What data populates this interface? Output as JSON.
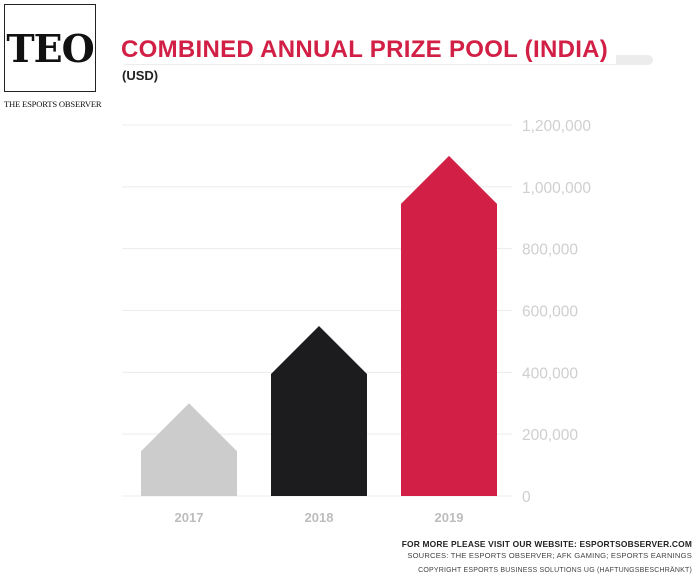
{
  "logo": {
    "mark": "TEO",
    "subtitle": "THE ESPORTS OBSERVER"
  },
  "header": {
    "title": "COMBINED ANNUAL PRIZE POOL (INDIA)",
    "subtitle": "(USD)"
  },
  "chart_data": {
    "type": "bar",
    "title": "COMBINED ANNUAL PRIZE POOL (INDIA)",
    "subtitle": "(USD)",
    "categories": [
      "2017",
      "2018",
      "2019"
    ],
    "values": [
      300000,
      550000,
      1100000
    ],
    "colors": [
      "#cccccc",
      "#1c1c1e",
      "#d21f45"
    ],
    "ylim": [
      0,
      1200000
    ],
    "yticks": [
      0,
      200000,
      400000,
      600000,
      800000,
      1000000,
      1200000
    ],
    "ytick_labels": [
      "0",
      "200,000",
      "400,000",
      "600,000",
      "800,000",
      "1,000,000",
      "1,200,000"
    ],
    "grid": true,
    "axis_position": "right",
    "bar_shape": "house"
  },
  "footer": {
    "website": "FOR MORE PLEASE VISIT OUR WEBSITE: ESPORTSOBSERVER.COM",
    "sources": "SOURCES: THE ESPORTS OBSERVER; AFK GAMING; ESPORTS EARNINGS",
    "copyright": "COPYRIGHT ESPORTS BUSINESS SOLUTIONS UG (HAFTUNGSBESCHRÄNKT)"
  }
}
